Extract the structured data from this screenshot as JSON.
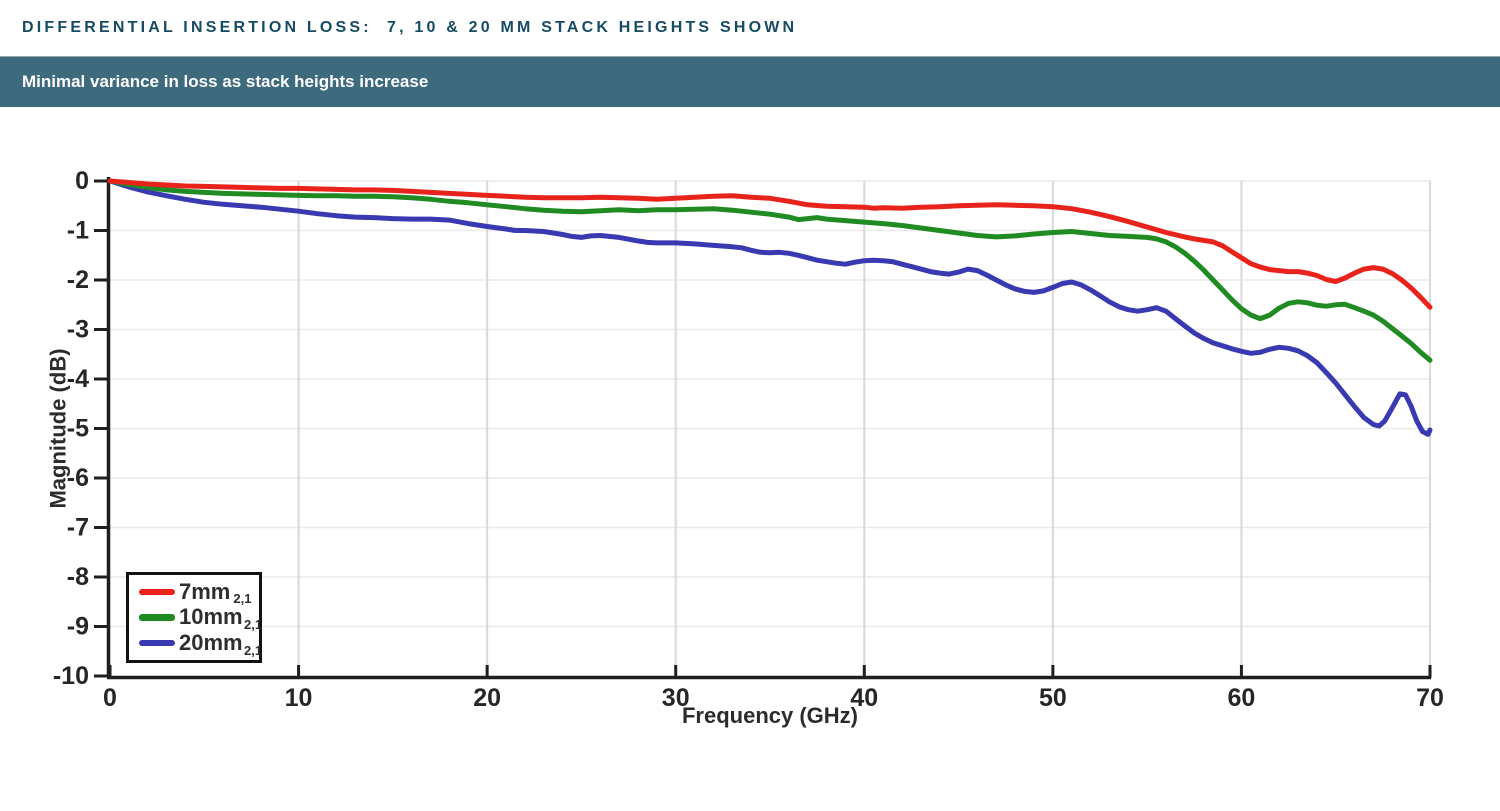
{
  "header": {
    "title": "DIFFERENTIAL INSERTION LOSS:  7, 10 & 20 MM STACK HEIGHTS SHOWN",
    "title_color": "#174b63"
  },
  "banner": {
    "text": "Minimal variance in loss as stack heights increase",
    "bg": "#3e6a7e",
    "text_color": "#ffffff"
  },
  "chart_data": {
    "type": "line",
    "xlabel": "Frequency (GHz)",
    "ylabel": "Magnitude (dB)",
    "xlim": [
      0,
      70
    ],
    "ylim": [
      -10,
      0
    ],
    "xticks": [
      0,
      10,
      20,
      30,
      40,
      50,
      60,
      70
    ],
    "yticks": [
      0,
      -1,
      -2,
      -3,
      -4,
      -5,
      -6,
      -7,
      -8,
      -9,
      -10
    ],
    "grid": true,
    "legend_position": "bottom-left",
    "colors": {
      "axis": "#1f1f1f",
      "grid_vertical": "#d8d8d8",
      "grid_horizontal": "#eaeaea",
      "tick_label": "#262626"
    },
    "series": [
      {
        "name": "7mm",
        "subscript": "2,1",
        "color": "#e8231c",
        "points": [
          [
            0,
            0
          ],
          [
            1,
            -0.03
          ],
          [
            2,
            -0.06
          ],
          [
            3,
            -0.08
          ],
          [
            4,
            -0.1
          ],
          [
            5,
            -0.11
          ],
          [
            6,
            -0.12
          ],
          [
            7,
            -0.13
          ],
          [
            8,
            -0.14
          ],
          [
            9,
            -0.15
          ],
          [
            10,
            -0.15
          ],
          [
            11,
            -0.16
          ],
          [
            12,
            -0.17
          ],
          [
            13,
            -0.18
          ],
          [
            14,
            -0.18
          ],
          [
            15,
            -0.19
          ],
          [
            16,
            -0.21
          ],
          [
            17,
            -0.23
          ],
          [
            18,
            -0.25
          ],
          [
            19,
            -0.27
          ],
          [
            20,
            -0.29
          ],
          [
            21,
            -0.31
          ],
          [
            22,
            -0.33
          ],
          [
            23,
            -0.34
          ],
          [
            24,
            -0.34
          ],
          [
            25,
            -0.34
          ],
          [
            26,
            -0.33
          ],
          [
            27,
            -0.34
          ],
          [
            28,
            -0.35
          ],
          [
            29,
            -0.37
          ],
          [
            30,
            -0.35
          ],
          [
            31,
            -0.33
          ],
          [
            32,
            -0.31
          ],
          [
            33,
            -0.3
          ],
          [
            34,
            -0.33
          ],
          [
            35,
            -0.35
          ],
          [
            36,
            -0.41
          ],
          [
            37,
            -0.48
          ],
          [
            38,
            -0.51
          ],
          [
            39,
            -0.52
          ],
          [
            40,
            -0.53
          ],
          [
            40.5,
            -0.55
          ],
          [
            41,
            -0.54
          ],
          [
            42,
            -0.55
          ],
          [
            43,
            -0.53
          ],
          [
            44,
            -0.52
          ],
          [
            45,
            -0.5
          ],
          [
            46,
            -0.49
          ],
          [
            47,
            -0.48
          ],
          [
            48,
            -0.49
          ],
          [
            49,
            -0.5
          ],
          [
            50,
            -0.52
          ],
          [
            51,
            -0.56
          ],
          [
            52,
            -0.63
          ],
          [
            53,
            -0.72
          ],
          [
            54,
            -0.82
          ],
          [
            55,
            -0.93
          ],
          [
            56,
            -1.04
          ],
          [
            57,
            -1.13
          ],
          [
            57.5,
            -1.17
          ],
          [
            58,
            -1.2
          ],
          [
            58.5,
            -1.23
          ],
          [
            59,
            -1.31
          ],
          [
            59.5,
            -1.43
          ],
          [
            60,
            -1.55
          ],
          [
            60.5,
            -1.67
          ],
          [
            61,
            -1.74
          ],
          [
            61.5,
            -1.79
          ],
          [
            62,
            -1.81
          ],
          [
            62.5,
            -1.83
          ],
          [
            63,
            -1.83
          ],
          [
            63.5,
            -1.86
          ],
          [
            64,
            -1.91
          ],
          [
            64.5,
            -1.99
          ],
          [
            65,
            -2.03
          ],
          [
            65.5,
            -1.96
          ],
          [
            66,
            -1.86
          ],
          [
            66.5,
            -1.78
          ],
          [
            67,
            -1.75
          ],
          [
            67.5,
            -1.78
          ],
          [
            68,
            -1.87
          ],
          [
            68.5,
            -2.0
          ],
          [
            69,
            -2.16
          ],
          [
            69.5,
            -2.35
          ],
          [
            70,
            -2.55
          ]
        ]
      },
      {
        "name": "10mm",
        "subscript": "2,1",
        "color": "#1f8b22",
        "points": [
          [
            0,
            0
          ],
          [
            1,
            -0.07
          ],
          [
            2,
            -0.13
          ],
          [
            3,
            -0.18
          ],
          [
            4,
            -0.21
          ],
          [
            5,
            -0.23
          ],
          [
            6,
            -0.25
          ],
          [
            7,
            -0.26
          ],
          [
            8,
            -0.27
          ],
          [
            9,
            -0.28
          ],
          [
            10,
            -0.29
          ],
          [
            11,
            -0.3
          ],
          [
            12,
            -0.3
          ],
          [
            13,
            -0.31
          ],
          [
            14,
            -0.31
          ],
          [
            15,
            -0.32
          ],
          [
            16,
            -0.34
          ],
          [
            17,
            -0.37
          ],
          [
            18,
            -0.41
          ],
          [
            19,
            -0.44
          ],
          [
            20,
            -0.48
          ],
          [
            21,
            -0.52
          ],
          [
            22,
            -0.56
          ],
          [
            23,
            -0.59
          ],
          [
            24,
            -0.61
          ],
          [
            25,
            -0.62
          ],
          [
            26,
            -0.6
          ],
          [
            27,
            -0.58
          ],
          [
            28,
            -0.6
          ],
          [
            29,
            -0.58
          ],
          [
            30,
            -0.58
          ],
          [
            31,
            -0.57
          ],
          [
            32,
            -0.56
          ],
          [
            33,
            -0.59
          ],
          [
            34,
            -0.63
          ],
          [
            35,
            -0.67
          ],
          [
            36,
            -0.73
          ],
          [
            36.5,
            -0.78
          ],
          [
            37,
            -0.76
          ],
          [
            37.5,
            -0.74
          ],
          [
            38,
            -0.77
          ],
          [
            39,
            -0.8
          ],
          [
            40,
            -0.83
          ],
          [
            41,
            -0.86
          ],
          [
            42,
            -0.9
          ],
          [
            43,
            -0.95
          ],
          [
            44,
            -1.0
          ],
          [
            45,
            -1.05
          ],
          [
            46,
            -1.1
          ],
          [
            47,
            -1.13
          ],
          [
            48,
            -1.11
          ],
          [
            49,
            -1.07
          ],
          [
            50,
            -1.04
          ],
          [
            51,
            -1.02
          ],
          [
            52,
            -1.06
          ],
          [
            53,
            -1.1
          ],
          [
            54,
            -1.12
          ],
          [
            55,
            -1.14
          ],
          [
            55.5,
            -1.17
          ],
          [
            56,
            -1.23
          ],
          [
            56.5,
            -1.33
          ],
          [
            57,
            -1.46
          ],
          [
            57.5,
            -1.62
          ],
          [
            58,
            -1.8
          ],
          [
            58.5,
            -2.0
          ],
          [
            59,
            -2.2
          ],
          [
            59.5,
            -2.4
          ],
          [
            60,
            -2.58
          ],
          [
            60.5,
            -2.71
          ],
          [
            61,
            -2.78
          ],
          [
            61.5,
            -2.71
          ],
          [
            62,
            -2.57
          ],
          [
            62.5,
            -2.47
          ],
          [
            63,
            -2.44
          ],
          [
            63.5,
            -2.46
          ],
          [
            64,
            -2.51
          ],
          [
            64.5,
            -2.53
          ],
          [
            65,
            -2.5
          ],
          [
            65.5,
            -2.49
          ],
          [
            66,
            -2.56
          ],
          [
            66.5,
            -2.63
          ],
          [
            67,
            -2.71
          ],
          [
            67.5,
            -2.83
          ],
          [
            68,
            -2.98
          ],
          [
            68.5,
            -3.13
          ],
          [
            69,
            -3.28
          ],
          [
            69.5,
            -3.46
          ],
          [
            70,
            -3.62
          ]
        ]
      },
      {
        "name": "20mm",
        "subscript": "2,1",
        "color": "#3939b2",
        "points": [
          [
            0,
            0
          ],
          [
            1,
            -0.12
          ],
          [
            2,
            -0.22
          ],
          [
            3,
            -0.3
          ],
          [
            4,
            -0.37
          ],
          [
            5,
            -0.43
          ],
          [
            6,
            -0.47
          ],
          [
            7,
            -0.5
          ],
          [
            8,
            -0.53
          ],
          [
            9,
            -0.57
          ],
          [
            10,
            -0.61
          ],
          [
            11,
            -0.66
          ],
          [
            12,
            -0.7
          ],
          [
            13,
            -0.73
          ],
          [
            14,
            -0.74
          ],
          [
            15,
            -0.76
          ],
          [
            16,
            -0.77
          ],
          [
            17,
            -0.77
          ],
          [
            18,
            -0.79
          ],
          [
            19,
            -0.86
          ],
          [
            20,
            -0.92
          ],
          [
            21,
            -0.97
          ],
          [
            21.5,
            -1.0
          ],
          [
            22,
            -1.0
          ],
          [
            23,
            -1.02
          ],
          [
            24,
            -1.08
          ],
          [
            24.5,
            -1.12
          ],
          [
            25,
            -1.14
          ],
          [
            25.5,
            -1.11
          ],
          [
            26,
            -1.1
          ],
          [
            27,
            -1.14
          ],
          [
            28,
            -1.21
          ],
          [
            28.5,
            -1.24
          ],
          [
            29,
            -1.25
          ],
          [
            30,
            -1.25
          ],
          [
            31,
            -1.27
          ],
          [
            32,
            -1.3
          ],
          [
            33,
            -1.33
          ],
          [
            33.5,
            -1.35
          ],
          [
            34,
            -1.4
          ],
          [
            34.5,
            -1.44
          ],
          [
            35,
            -1.45
          ],
          [
            35.5,
            -1.44
          ],
          [
            36,
            -1.46
          ],
          [
            36.5,
            -1.5
          ],
          [
            37,
            -1.55
          ],
          [
            37.5,
            -1.6
          ],
          [
            38,
            -1.63
          ],
          [
            38.5,
            -1.66
          ],
          [
            39,
            -1.68
          ],
          [
            39.5,
            -1.64
          ],
          [
            40,
            -1.61
          ],
          [
            40.5,
            -1.6
          ],
          [
            41,
            -1.61
          ],
          [
            41.5,
            -1.63
          ],
          [
            42,
            -1.68
          ],
          [
            42.5,
            -1.73
          ],
          [
            43,
            -1.78
          ],
          [
            43.5,
            -1.83
          ],
          [
            44,
            -1.86
          ],
          [
            44.5,
            -1.88
          ],
          [
            45,
            -1.84
          ],
          [
            45.5,
            -1.78
          ],
          [
            46,
            -1.81
          ],
          [
            46.5,
            -1.9
          ],
          [
            47,
            -2.0
          ],
          [
            47.5,
            -2.1
          ],
          [
            48,
            -2.18
          ],
          [
            48.5,
            -2.23
          ],
          [
            49,
            -2.25
          ],
          [
            49.5,
            -2.22
          ],
          [
            50,
            -2.15
          ],
          [
            50.5,
            -2.07
          ],
          [
            51,
            -2.04
          ],
          [
            51.5,
            -2.1
          ],
          [
            52,
            -2.2
          ],
          [
            52.5,
            -2.32
          ],
          [
            53,
            -2.44
          ],
          [
            53.5,
            -2.54
          ],
          [
            54,
            -2.6
          ],
          [
            54.5,
            -2.63
          ],
          [
            55,
            -2.6
          ],
          [
            55.5,
            -2.56
          ],
          [
            56,
            -2.63
          ],
          [
            56.5,
            -2.78
          ],
          [
            57,
            -2.93
          ],
          [
            57.5,
            -3.07
          ],
          [
            58,
            -3.18
          ],
          [
            58.5,
            -3.27
          ],
          [
            59,
            -3.33
          ],
          [
            59.5,
            -3.39
          ],
          [
            60,
            -3.44
          ],
          [
            60.5,
            -3.48
          ],
          [
            61,
            -3.46
          ],
          [
            61.5,
            -3.4
          ],
          [
            62,
            -3.36
          ],
          [
            62.5,
            -3.38
          ],
          [
            63,
            -3.43
          ],
          [
            63.5,
            -3.53
          ],
          [
            64,
            -3.67
          ],
          [
            64.5,
            -3.87
          ],
          [
            65,
            -4.08
          ],
          [
            65.5,
            -4.32
          ],
          [
            66,
            -4.56
          ],
          [
            66.5,
            -4.78
          ],
          [
            67,
            -4.92
          ],
          [
            67.3,
            -4.95
          ],
          [
            67.6,
            -4.85
          ],
          [
            68,
            -4.58
          ],
          [
            68.4,
            -4.3
          ],
          [
            68.7,
            -4.32
          ],
          [
            69,
            -4.55
          ],
          [
            69.3,
            -4.85
          ],
          [
            69.6,
            -5.06
          ],
          [
            69.9,
            -5.12
          ],
          [
            70,
            -5.03
          ]
        ]
      }
    ]
  }
}
